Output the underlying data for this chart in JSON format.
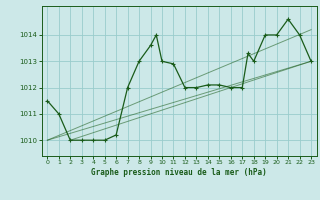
{
  "title": "Graphe pression niveau de la mer (hPa)",
  "background_color": "#cce8e8",
  "grid_color": "#99cccc",
  "line_color": "#1a5c1a",
  "xlim": [
    -0.5,
    23.5
  ],
  "ylim": [
    1009.4,
    1015.1
  ],
  "yticks": [
    1010,
    1011,
    1012,
    1013,
    1014
  ],
  "xticks": [
    0,
    1,
    2,
    3,
    4,
    5,
    6,
    7,
    8,
    9,
    10,
    11,
    12,
    13,
    14,
    15,
    16,
    17,
    18,
    19,
    20,
    21,
    22,
    23
  ],
  "main_series": [
    [
      0,
      1011.5
    ],
    [
      1,
      1011.0
    ],
    [
      2,
      1010.0
    ],
    [
      3,
      1010.0
    ],
    [
      4,
      1010.0
    ],
    [
      5,
      1010.0
    ],
    [
      6,
      1010.2
    ],
    [
      7,
      1012.0
    ],
    [
      8,
      1013.0
    ],
    [
      9,
      1013.6
    ],
    [
      9.5,
      1014.0
    ],
    [
      10,
      1013.0
    ],
    [
      11,
      1012.9
    ],
    [
      12,
      1012.0
    ],
    [
      13,
      1012.0
    ],
    [
      14,
      1012.1
    ],
    [
      15,
      1012.1
    ],
    [
      16,
      1012.0
    ],
    [
      17,
      1012.0
    ],
    [
      17.5,
      1013.3
    ],
    [
      18,
      1013.0
    ],
    [
      19,
      1014.0
    ],
    [
      20,
      1014.0
    ],
    [
      21,
      1014.6
    ],
    [
      22,
      1014.0
    ],
    [
      23,
      1013.0
    ]
  ],
  "trend_line1": [
    [
      0,
      1010.0
    ],
    [
      23,
      1013.0
    ]
  ],
  "trend_line2": [
    [
      0,
      1010.0
    ],
    [
      23,
      1014.2
    ]
  ],
  "trend_line3": [
    [
      2,
      1010.0
    ],
    [
      23,
      1013.0
    ]
  ]
}
